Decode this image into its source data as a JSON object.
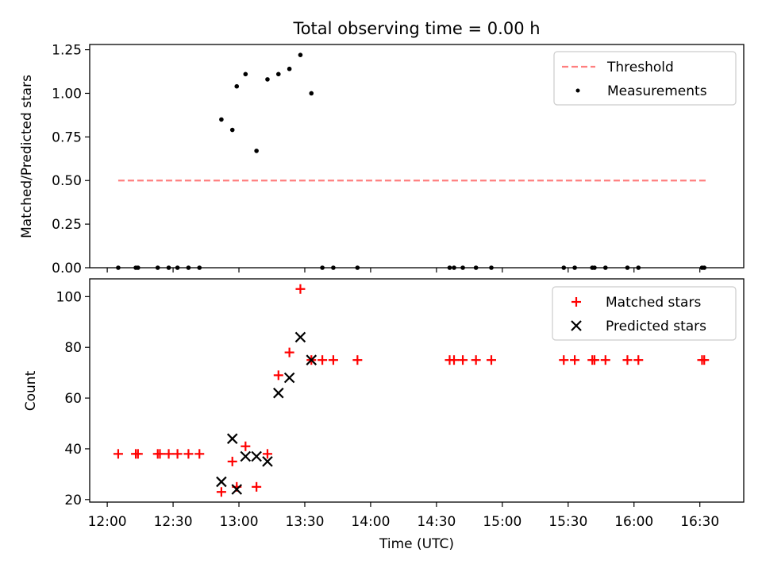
{
  "figure": {
    "title": "Total observing time = 0.00 h"
  },
  "chart_data": [
    {
      "type": "scatter",
      "xlabel": "",
      "ylabel": "Matched/Predicted stars",
      "xlim": [
        "11:52",
        "16:50"
      ],
      "ylim": [
        0,
        1.28
      ],
      "yticks": [
        "0.00",
        "0.25",
        "0.50",
        "0.75",
        "1.00",
        "1.25"
      ],
      "grid": false,
      "legend_position": "top-right",
      "series": [
        {
          "name": "Threshold",
          "kind": "line",
          "style": "dashed",
          "color": "#ff7f7f",
          "x": [
            "12:05",
            "16:33"
          ],
          "y": [
            0.5,
            0.5
          ]
        },
        {
          "name": "Measurements",
          "kind": "scatter",
          "marker": "dot",
          "color": "#000000",
          "x": [
            "12:05",
            "12:13",
            "12:14",
            "12:23",
            "12:28",
            "12:32",
            "12:37",
            "12:42",
            "12:52",
            "12:57",
            "12:59",
            "13:03",
            "13:08",
            "13:13",
            "13:18",
            "13:23",
            "13:28",
            "13:33",
            "13:38",
            "13:43",
            "13:54",
            "14:36",
            "14:38",
            "14:42",
            "14:48",
            "14:55",
            "15:28",
            "15:33",
            "15:41",
            "15:42",
            "15:47",
            "15:57",
            "16:02",
            "16:31",
            "16:32"
          ],
          "y": [
            0,
            0,
            0,
            0,
            0,
            0,
            0,
            0,
            0.85,
            0.79,
            1.04,
            1.11,
            0.67,
            1.08,
            1.11,
            1.14,
            1.22,
            1.0,
            0,
            0,
            0,
            0,
            0,
            0,
            0,
            0,
            0,
            0,
            0,
            0,
            0,
            0,
            0,
            0,
            0
          ]
        }
      ]
    },
    {
      "type": "scatter",
      "xlabel": "Time (UTC)",
      "ylabel": "Count",
      "xlim": [
        "11:52",
        "16:50"
      ],
      "ylim": [
        19,
        107
      ],
      "xticks": [
        "12:00",
        "12:30",
        "13:00",
        "13:30",
        "14:00",
        "14:30",
        "15:00",
        "15:30",
        "16:00",
        "16:30"
      ],
      "yticks": [
        "20",
        "40",
        "60",
        "80",
        "100"
      ],
      "grid": false,
      "legend_position": "top-right",
      "series": [
        {
          "name": "Matched stars",
          "marker": "plus",
          "color": "#ff0000",
          "x": [
            "12:05",
            "12:13",
            "12:14",
            "12:23",
            "12:24",
            "12:28",
            "12:32",
            "12:37",
            "12:42",
            "12:52",
            "12:57",
            "12:59",
            "13:03",
            "13:08",
            "13:13",
            "13:18",
            "13:23",
            "13:28",
            "13:33",
            "13:38",
            "13:43",
            "13:54",
            "14:36",
            "14:38",
            "14:42",
            "14:48",
            "14:55",
            "15:28",
            "15:33",
            "15:41",
            "15:42",
            "15:47",
            "15:57",
            "16:02",
            "16:31",
            "16:32"
          ],
          "y": [
            38,
            38,
            38,
            38,
            38,
            38,
            38,
            38,
            38,
            23,
            35,
            25,
            41,
            25,
            38,
            69,
            78,
            103,
            75,
            75,
            75,
            75,
            75,
            75,
            75,
            75,
            75,
            75,
            75,
            75,
            75,
            75,
            75,
            75,
            75,
            75
          ]
        },
        {
          "name": "Predicted stars",
          "marker": "x",
          "color": "#000000",
          "x": [
            "12:52",
            "12:57",
            "12:59",
            "13:03",
            "13:08",
            "13:13",
            "13:18",
            "13:23",
            "13:28",
            "13:33"
          ],
          "y": [
            27,
            44,
            24,
            37,
            37,
            35,
            62,
            68,
            84,
            75
          ]
        }
      ]
    }
  ]
}
